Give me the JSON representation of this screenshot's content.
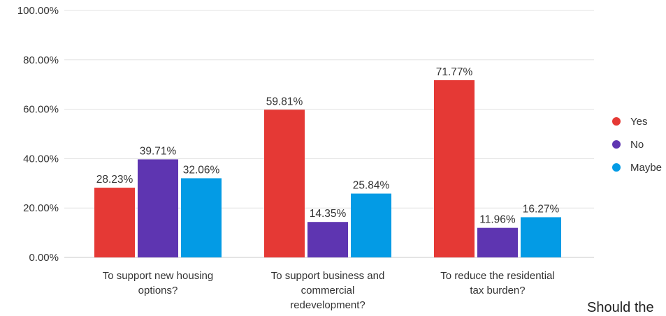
{
  "chart_data": {
    "type": "bar",
    "ylim": [
      0,
      100
    ],
    "yticks": [
      "0.00%",
      "20.00%",
      "40.00%",
      "60.00%",
      "80.00%",
      "100.00%"
    ],
    "categories": [
      [
        "To support new housing",
        "options?"
      ],
      [
        "To support business and",
        "commercial",
        "redevelopment?"
      ],
      [
        "To reduce the residential",
        "tax burden?"
      ]
    ],
    "series": [
      {
        "name": "Yes",
        "color": "#e53935",
        "values": [
          28.23,
          59.81,
          71.77
        ],
        "labels": [
          "28.23%",
          "59.81%",
          "71.77%"
        ]
      },
      {
        "name": "No",
        "color": "#5e35b1",
        "values": [
          39.71,
          14.35,
          11.96
        ],
        "labels": [
          "39.71%",
          "14.35%",
          "11.96%"
        ]
      },
      {
        "name": "Maybe",
        "color": "#039be5",
        "values": [
          32.06,
          25.84,
          16.27
        ],
        "labels": [
          "32.06%",
          "25.84%",
          "16.27%"
        ]
      }
    ],
    "grid": true,
    "legend_position": "right"
  },
  "cutoff_text": "Should the"
}
